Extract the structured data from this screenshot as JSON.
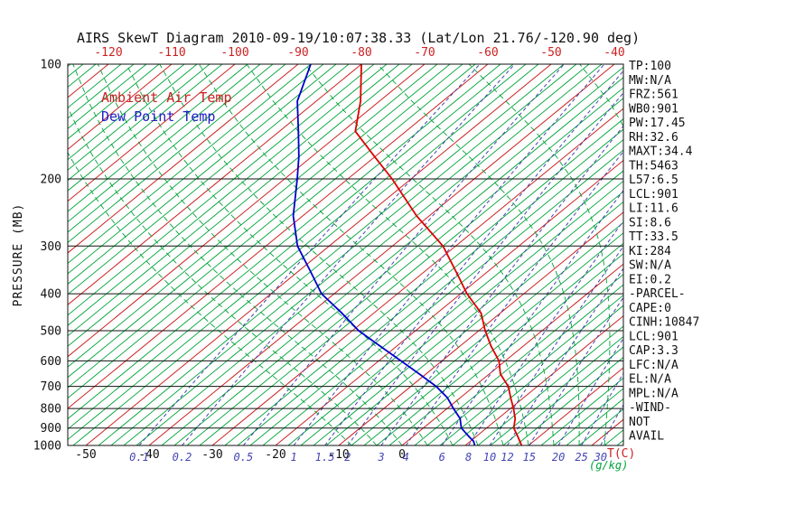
{
  "title": "AIRS SkewT Diagram 2010-09-19/10:07:38.33 (Lat/Lon 21.76/-120.90 deg)",
  "legend": {
    "ambient": "Ambient Air Temp",
    "dewpoint": "Dew Point Temp"
  },
  "stats": [
    "TP:100",
    "MW:N/A",
    "FRZ:561",
    "WB0:901",
    "PW:17.45",
    "RH:32.6",
    "MAXT:34.4",
    "TH:5463",
    "L57:6.5",
    "LCL:901",
    "LI:11.6",
    "SI:8.6",
    "TT:33.5",
    "KI:284",
    "SW:N/A",
    "EI:0.2",
    "-PARCEL-",
    "CAPE:0",
    "CINH:10847",
    "LCL:901",
    "CAP:3.3",
    "LFC:N/A",
    "EL:N/A",
    "MPL:N/A",
    "-WIND-",
    "NOT",
    "AVAIL"
  ],
  "chart_data": {
    "type": "line",
    "subtype": "skew-t-log-p",
    "title": "AIRS SkewT Diagram 2010-09-19/10:07:38.33 (Lat/Lon 21.76/-120.90 deg)",
    "ylabel": "PRESSURE (MB)",
    "xlabel_temp": "T(C)",
    "xlabel_mixing": "(g/kg)",
    "y_axis": {
      "scale": "log",
      "unit": "MB",
      "range": [
        100,
        1000
      ],
      "ticks": [
        100,
        200,
        300,
        400,
        500,
        600,
        700,
        800,
        900,
        1000
      ]
    },
    "top_isotherm_labels_c": [
      -120,
      -110,
      -100,
      -90,
      -80,
      -70,
      -60,
      -50,
      -40
    ],
    "bottom_temp_labels_c": [
      -50,
      -40,
      -30,
      -20,
      -10,
      0
    ],
    "mixing_ratio_lines_gkg": [
      0.1,
      0.2,
      0.5,
      1,
      1.5,
      2,
      3,
      4,
      6,
      8,
      10,
      12,
      15,
      20,
      25,
      30
    ],
    "isotherm_minor_step_c": 2,
    "isotherm_major_step_c": 10,
    "moist_adiabat_surface_temps_c": [
      -8,
      -4,
      0,
      4,
      8,
      12,
      16,
      20,
      24,
      28,
      32,
      36
    ],
    "grid": "on",
    "legend_position": "upper-left-inside",
    "series": [
      {
        "id": "ambient-air-temp",
        "name": "Ambient Air Temp",
        "color": "#dd0000",
        "points_p_t": [
          [
            100,
            -80
          ],
          [
            125,
            -73
          ],
          [
            150,
            -68
          ],
          [
            175,
            -60
          ],
          [
            200,
            -53
          ],
          [
            250,
            -42
          ],
          [
            300,
            -32
          ],
          [
            350,
            -25
          ],
          [
            400,
            -19
          ],
          [
            450,
            -13
          ],
          [
            500,
            -9
          ],
          [
            550,
            -5
          ],
          [
            600,
            -1
          ],
          [
            650,
            1.8
          ],
          [
            700,
            5.4
          ],
          [
            750,
            8
          ],
          [
            800,
            10.5
          ],
          [
            850,
            12.7
          ],
          [
            900,
            14.3
          ],
          [
            950,
            16.7
          ],
          [
            1000,
            18.9
          ]
        ]
      },
      {
        "id": "dew-point-temp",
        "name": "Dew Point Temp",
        "color": "#0000cc",
        "points_p_t": [
          [
            100,
            -88
          ],
          [
            125,
            -83
          ],
          [
            150,
            -77
          ],
          [
            175,
            -72
          ],
          [
            200,
            -68
          ],
          [
            250,
            -61.5
          ],
          [
            300,
            -55
          ],
          [
            350,
            -48
          ],
          [
            400,
            -42
          ],
          [
            450,
            -35
          ],
          [
            500,
            -29
          ],
          [
            550,
            -22.5
          ],
          [
            600,
            -16.5
          ],
          [
            650,
            -11
          ],
          [
            700,
            -6
          ],
          [
            750,
            -2
          ],
          [
            800,
            1
          ],
          [
            850,
            4
          ],
          [
            900,
            6
          ],
          [
            950,
            9
          ],
          [
            975,
            10.5
          ],
          [
            1000,
            11.5
          ]
        ]
      }
    ]
  },
  "colors": {
    "isotherm_minor": "#00a33a",
    "isotherm_major": "#cc2222",
    "mixing_line": "#4444b4",
    "moist_adiabat": "#00a33a",
    "pressure_line": "#111111",
    "border": "#111111",
    "ambient": "#dd0000",
    "dewpoint": "#0000cc",
    "top_label": "#cc2222",
    "mixing_label": "#4444b4",
    "unit_temp_label": "#cc2222",
    "unit_mixing_label": "#00a33a",
    "text": "#111111"
  }
}
